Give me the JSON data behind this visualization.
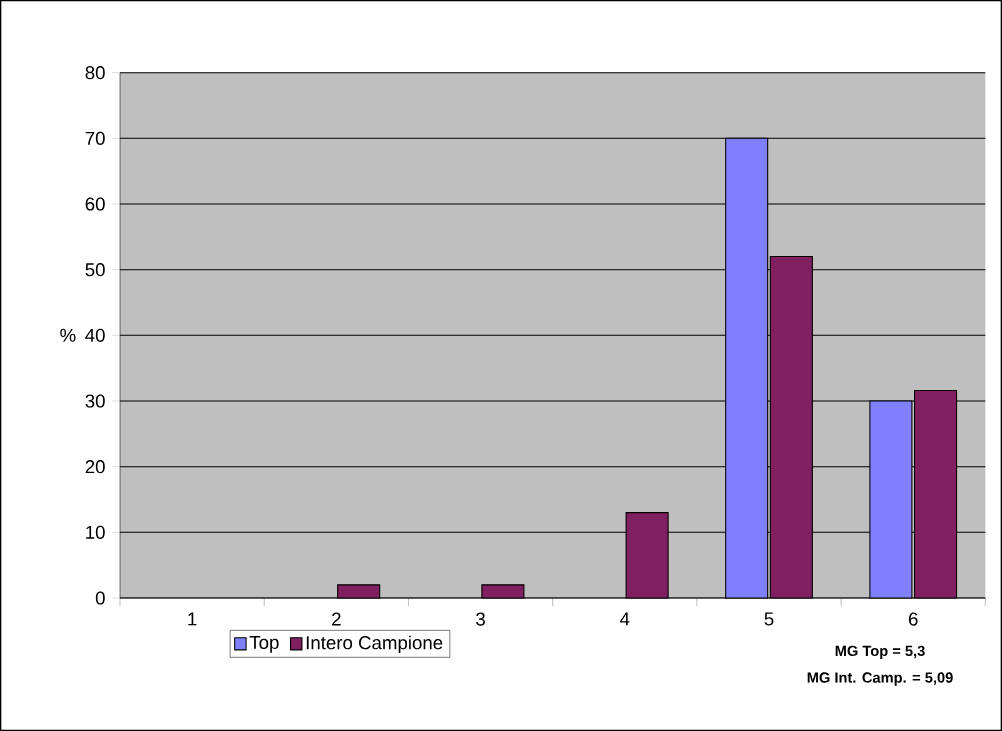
{
  "chart_data": {
    "type": "bar",
    "categories": [
      "1",
      "2",
      "3",
      "4",
      "5",
      "6"
    ],
    "series": [
      {
        "name": "Top",
        "color": "#8080ff",
        "values": [
          0,
          0,
          0,
          0,
          70,
          30
        ]
      },
      {
        "name": "Intero Campione",
        "color": "#802060",
        "values": [
          0,
          2,
          2,
          13,
          52,
          31.6
        ]
      }
    ],
    "ylabel": "%",
    "ylim": [
      0,
      80
    ],
    "yticks": [
      0,
      10,
      20,
      30,
      40,
      50,
      60,
      70,
      80
    ],
    "grid": "y",
    "legend": "bottom",
    "annotations": [
      "MG Top = 5,3",
      "MG Int. Camp. = 5,09"
    ]
  }
}
